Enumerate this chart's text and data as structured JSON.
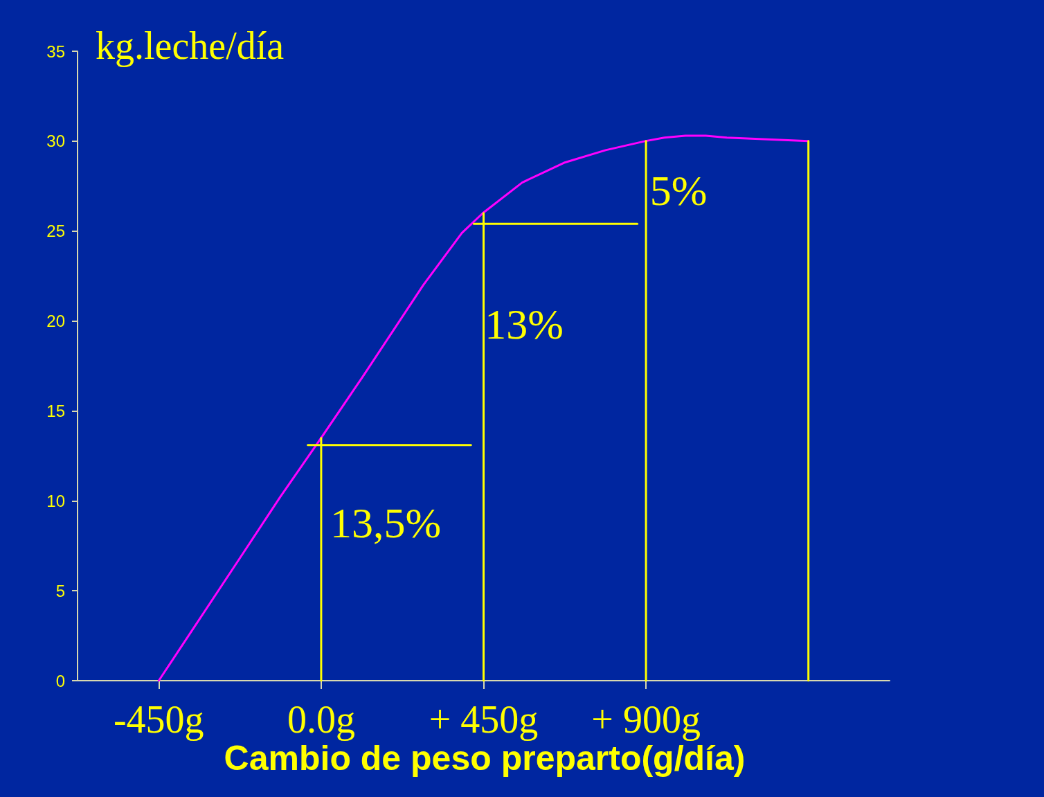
{
  "chart_data": {
    "type": "line",
    "ylabel": "kg.leche/día",
    "xlabel": "Cambio de peso preparto(g/día)",
    "xlim": [
      -675,
      1575
    ],
    "xticks": [
      {
        "value": -450,
        "label": "-450g"
      },
      {
        "value": 0,
        "label": "0.0g"
      },
      {
        "value": 450,
        "label": "+ 450g"
      },
      {
        "value": 900,
        "label": "+ 900g"
      }
    ],
    "ylim": [
      0,
      35
    ],
    "yticks": [
      0,
      5,
      10,
      15,
      20,
      25,
      30,
      35
    ],
    "grid": false,
    "marker": "none",
    "line_style": "solid",
    "series": [
      {
        "color": "#ff00ff",
        "x": [
          -450,
          -229,
          -114,
          0,
          115,
          283,
          390,
          448,
          557,
          673,
          788,
          897,
          951,
          1009,
          1066,
          1124,
          1350
        ],
        "values": [
          0,
          6.7,
          10.2,
          13.5,
          16.9,
          22.0,
          24.9,
          26.0,
          27.7,
          28.8,
          29.5,
          30.0,
          30.2,
          30.3,
          30.3,
          30.2,
          30.0
        ]
      },
      {
        "color": "#ffff00",
        "x": [
          0,
          0
        ],
        "values": [
          0,
          13.5
        ]
      },
      {
        "color": "#ffff00",
        "x": [
          450,
          450
        ],
        "values": [
          0,
          26.0
        ]
      },
      {
        "color": "#ffff00",
        "x": [
          900,
          900
        ],
        "values": [
          0,
          30.0
        ]
      },
      {
        "color": "#ffff00",
        "x": [
          1350,
          1350
        ],
        "values": [
          0,
          30.0
        ]
      },
      {
        "color": "#ffff00",
        "x": [
          -37,
          415
        ],
        "values": [
          13.1,
          13.1
        ]
      },
      {
        "color": "#ffff00",
        "x": [
          423,
          876
        ],
        "values": [
          25.4,
          25.4
        ]
      }
    ],
    "annotations": [
      "13,5%",
      "13%",
      "5%"
    ]
  }
}
